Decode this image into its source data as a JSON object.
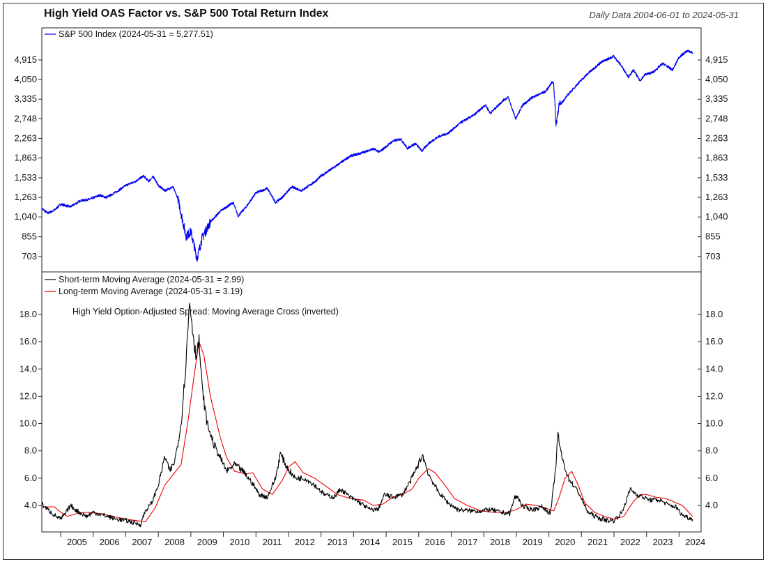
{
  "header": {
    "title": "High Yield OAS Factor vs. S&P 500 Total Return Index",
    "subtitle": "Daily Data 2004-06-01 to 2024-05-31"
  },
  "chart_data": [
    {
      "type": "line",
      "scale": "log",
      "ylim": [
        620,
        5700
      ],
      "xlim": [
        2004.42,
        2024.42
      ],
      "y_ticks": [
        703,
        855,
        1040,
        1263,
        1533,
        1863,
        2263,
        2748,
        3335,
        4050,
        4915
      ],
      "y_tick_labels": [
        "703",
        "855",
        "1,040",
        "1,263",
        "1,533",
        "1,863",
        "2,263",
        "2,748",
        "3,335",
        "4,050",
        "4,915"
      ],
      "legend_position": "top-left",
      "grid": false,
      "series": [
        {
          "name": "S&P 500 Index (2024-05-31 = 5,277.51)",
          "color": "#0000ee",
          "points": [
            [
              2004.42,
              1130
            ],
            [
              2004.6,
              1080
            ],
            [
              2004.8,
              1110
            ],
            [
              2005.0,
              1180
            ],
            [
              2005.3,
              1150
            ],
            [
              2005.6,
              1220
            ],
            [
              2005.9,
              1240
            ],
            [
              2006.2,
              1290
            ],
            [
              2006.4,
              1260
            ],
            [
              2006.7,
              1330
            ],
            [
              2007.0,
              1420
            ],
            [
              2007.3,
              1480
            ],
            [
              2007.55,
              1560
            ],
            [
              2007.7,
              1480
            ],
            [
              2007.85,
              1550
            ],
            [
              2008.0,
              1420
            ],
            [
              2008.2,
              1350
            ],
            [
              2008.45,
              1400
            ],
            [
              2008.6,
              1250
            ],
            [
              2008.75,
              1000
            ],
            [
              2008.85,
              860
            ],
            [
              2009.0,
              900
            ],
            [
              2009.1,
              780
            ],
            [
              2009.19,
              690
            ],
            [
              2009.35,
              850
            ],
            [
              2009.6,
              990
            ],
            [
              2009.9,
              1100
            ],
            [
              2010.3,
              1200
            ],
            [
              2010.45,
              1050
            ],
            [
              2010.7,
              1150
            ],
            [
              2011.0,
              1320
            ],
            [
              2011.35,
              1380
            ],
            [
              2011.6,
              1200
            ],
            [
              2011.8,
              1260
            ],
            [
              2012.1,
              1400
            ],
            [
              2012.4,
              1350
            ],
            [
              2012.8,
              1470
            ],
            [
              2013.0,
              1560
            ],
            [
              2013.4,
              1700
            ],
            [
              2013.9,
              1900
            ],
            [
              2014.2,
              1950
            ],
            [
              2014.6,
              2040
            ],
            [
              2014.8,
              1980
            ],
            [
              2015.2,
              2200
            ],
            [
              2015.45,
              2250
            ],
            [
              2015.65,
              2050
            ],
            [
              2015.9,
              2150
            ],
            [
              2016.1,
              2000
            ],
            [
              2016.3,
              2150
            ],
            [
              2016.6,
              2300
            ],
            [
              2016.9,
              2380
            ],
            [
              2017.3,
              2650
            ],
            [
              2017.7,
              2850
            ],
            [
              2018.05,
              3150
            ],
            [
              2018.2,
              2900
            ],
            [
              2018.6,
              3300
            ],
            [
              2018.75,
              3400
            ],
            [
              2018.98,
              2750
            ],
            [
              2019.2,
              3150
            ],
            [
              2019.5,
              3400
            ],
            [
              2019.9,
              3600
            ],
            [
              2020.1,
              3950
            ],
            [
              2020.15,
              3900
            ],
            [
              2020.22,
              2600
            ],
            [
              2020.3,
              3100
            ],
            [
              2020.6,
              3500
            ],
            [
              2020.9,
              3900
            ],
            [
              2021.2,
              4300
            ],
            [
              2021.6,
              4800
            ],
            [
              2021.99,
              5100
            ],
            [
              2022.2,
              4700
            ],
            [
              2022.45,
              4150
            ],
            [
              2022.6,
              4450
            ],
            [
              2022.8,
              4000
            ],
            [
              2022.95,
              4250
            ],
            [
              2023.2,
              4350
            ],
            [
              2023.5,
              4750
            ],
            [
              2023.8,
              4450
            ],
            [
              2024.0,
              5050
            ],
            [
              2024.25,
              5380
            ],
            [
              2024.42,
              5277.51
            ]
          ]
        }
      ]
    },
    {
      "type": "line",
      "title": "High Yield Option-Adjusted Spread: Moving Average Cross (inverted)",
      "ylim": [
        2.0,
        19.6
      ],
      "xlim": [
        2004.42,
        2024.42
      ],
      "y_ticks": [
        4.0,
        6.0,
        8.0,
        10.0,
        12.0,
        14.0,
        16.0,
        18.0
      ],
      "y_tick_labels": [
        "4.0",
        "6.0",
        "8.0",
        "10.0",
        "12.0",
        "14.0",
        "16.0",
        "18.0"
      ],
      "x_tick_labels": [
        "2005",
        "2006",
        "2007",
        "2008",
        "2009",
        "2010",
        "2011",
        "2012",
        "2013",
        "2014",
        "2015",
        "2016",
        "2017",
        "2018",
        "2019",
        "2020",
        "2021",
        "2022",
        "2023",
        "2024"
      ],
      "legend_position": "top-left",
      "grid": false,
      "series": [
        {
          "name": "Short-term Moving Average (2024-05-31 = 2.99)",
          "color": "#000000",
          "points": [
            [
              2004.42,
              4.1
            ],
            [
              2004.6,
              3.7
            ],
            [
              2004.8,
              3.3
            ],
            [
              2005.0,
              3.0
            ],
            [
              2005.15,
              3.4
            ],
            [
              2005.3,
              4.0
            ],
            [
              2005.5,
              3.6
            ],
            [
              2005.8,
              3.2
            ],
            [
              2006.0,
              3.5
            ],
            [
              2006.3,
              3.3
            ],
            [
              2006.7,
              3.0
            ],
            [
              2007.0,
              2.9
            ],
            [
              2007.3,
              2.7
            ],
            [
              2007.45,
              2.6
            ],
            [
              2007.6,
              3.6
            ],
            [
              2007.8,
              4.2
            ],
            [
              2008.0,
              5.5
            ],
            [
              2008.2,
              7.6
            ],
            [
              2008.35,
              6.5
            ],
            [
              2008.5,
              7.2
            ],
            [
              2008.7,
              10.0
            ],
            [
              2008.85,
              14.5
            ],
            [
              2008.96,
              19.0
            ],
            [
              2009.05,
              17.0
            ],
            [
              2009.15,
              15.0
            ],
            [
              2009.25,
              16.0
            ],
            [
              2009.35,
              12.5
            ],
            [
              2009.5,
              10.0
            ],
            [
              2009.7,
              8.5
            ],
            [
              2009.9,
              7.5
            ],
            [
              2010.1,
              6.5
            ],
            [
              2010.35,
              7.0
            ],
            [
              2010.6,
              6.5
            ],
            [
              2010.9,
              5.6
            ],
            [
              2011.1,
              4.8
            ],
            [
              2011.35,
              4.6
            ],
            [
              2011.6,
              6.0
            ],
            [
              2011.75,
              7.8
            ],
            [
              2011.95,
              6.8
            ],
            [
              2012.2,
              6.0
            ],
            [
              2012.5,
              6.0
            ],
            [
              2012.8,
              5.5
            ],
            [
              2013.1,
              4.8
            ],
            [
              2013.4,
              4.6
            ],
            [
              2013.6,
              5.2
            ],
            [
              2013.9,
              4.6
            ],
            [
              2014.2,
              4.2
            ],
            [
              2014.5,
              3.7
            ],
            [
              2014.75,
              3.7
            ],
            [
              2014.95,
              4.8
            ],
            [
              2015.2,
              4.6
            ],
            [
              2015.5,
              4.8
            ],
            [
              2015.75,
              5.8
            ],
            [
              2015.95,
              6.8
            ],
            [
              2016.12,
              7.7
            ],
            [
              2016.3,
              6.3
            ],
            [
              2016.6,
              5.0
            ],
            [
              2016.9,
              4.2
            ],
            [
              2017.2,
              3.7
            ],
            [
              2017.6,
              3.6
            ],
            [
              2017.9,
              3.6
            ],
            [
              2018.2,
              3.7
            ],
            [
              2018.5,
              3.5
            ],
            [
              2018.8,
              3.4
            ],
            [
              2018.95,
              4.6
            ],
            [
              2019.05,
              4.6
            ],
            [
              2019.2,
              3.9
            ],
            [
              2019.5,
              3.7
            ],
            [
              2019.8,
              3.9
            ],
            [
              2020.05,
              3.4
            ],
            [
              2020.2,
              6.5
            ],
            [
              2020.28,
              9.2
            ],
            [
              2020.4,
              7.5
            ],
            [
              2020.6,
              6.0
            ],
            [
              2020.9,
              5.0
            ],
            [
              2021.2,
              3.5
            ],
            [
              2021.5,
              3.1
            ],
            [
              2021.8,
              2.9
            ],
            [
              2022.0,
              2.9
            ],
            [
              2022.25,
              3.5
            ],
            [
              2022.5,
              5.2
            ],
            [
              2022.7,
              4.8
            ],
            [
              2022.9,
              4.6
            ],
            [
              2023.1,
              4.4
            ],
            [
              2023.4,
              4.4
            ],
            [
              2023.7,
              4.0
            ],
            [
              2023.9,
              3.9
            ],
            [
              2024.1,
              3.3
            ],
            [
              2024.3,
              3.1
            ],
            [
              2024.42,
              2.99
            ]
          ]
        },
        {
          "name": "Long-term Moving Average (2024-05-31 = 3.19)",
          "color": "#ee0000",
          "points": [
            [
              2004.42,
              3.9
            ],
            [
              2004.8,
              3.9
            ],
            [
              2005.0,
              3.5
            ],
            [
              2005.2,
              3.2
            ],
            [
              2005.5,
              3.4
            ],
            [
              2005.8,
              3.5
            ],
            [
              2006.2,
              3.4
            ],
            [
              2006.6,
              3.2
            ],
            [
              2007.0,
              3.0
            ],
            [
              2007.3,
              2.9
            ],
            [
              2007.6,
              2.8
            ],
            [
              2007.9,
              3.8
            ],
            [
              2008.2,
              5.5
            ],
            [
              2008.5,
              6.4
            ],
            [
              2008.7,
              7.0
            ],
            [
              2008.9,
              10.0
            ],
            [
              2009.1,
              13.5
            ],
            [
              2009.25,
              16.0
            ],
            [
              2009.4,
              15.0
            ],
            [
              2009.6,
              12.0
            ],
            [
              2009.9,
              9.0
            ],
            [
              2010.1,
              7.5
            ],
            [
              2010.35,
              6.5
            ],
            [
              2010.7,
              6.3
            ],
            [
              2010.9,
              6.4
            ],
            [
              2011.2,
              5.2
            ],
            [
              2011.5,
              4.8
            ],
            [
              2011.8,
              5.8
            ],
            [
              2012.0,
              6.8
            ],
            [
              2012.2,
              7.2
            ],
            [
              2012.45,
              6.4
            ],
            [
              2012.8,
              6.0
            ],
            [
              2013.1,
              5.5
            ],
            [
              2013.5,
              4.8
            ],
            [
              2013.9,
              4.5
            ],
            [
              2014.3,
              4.4
            ],
            [
              2014.6,
              4.0
            ],
            [
              2014.9,
              4.1
            ],
            [
              2015.2,
              4.6
            ],
            [
              2015.5,
              4.8
            ],
            [
              2015.8,
              5.2
            ],
            [
              2016.0,
              6.0
            ],
            [
              2016.3,
              6.7
            ],
            [
              2016.5,
              6.4
            ],
            [
              2016.8,
              5.5
            ],
            [
              2017.1,
              4.5
            ],
            [
              2017.5,
              4.0
            ],
            [
              2017.9,
              3.6
            ],
            [
              2018.3,
              3.5
            ],
            [
              2018.7,
              3.5
            ],
            [
              2019.0,
              3.7
            ],
            [
              2019.3,
              4.1
            ],
            [
              2019.6,
              4.0
            ],
            [
              2019.9,
              3.8
            ],
            [
              2020.15,
              3.6
            ],
            [
              2020.3,
              4.5
            ],
            [
              2020.5,
              6.0
            ],
            [
              2020.7,
              6.5
            ],
            [
              2020.9,
              5.5
            ],
            [
              2021.1,
              4.2
            ],
            [
              2021.4,
              3.5
            ],
            [
              2021.7,
              3.2
            ],
            [
              2022.0,
              3.0
            ],
            [
              2022.3,
              3.2
            ],
            [
              2022.6,
              4.3
            ],
            [
              2022.8,
              4.8
            ],
            [
              2023.0,
              4.8
            ],
            [
              2023.3,
              4.6
            ],
            [
              2023.6,
              4.5
            ],
            [
              2023.9,
              4.2
            ],
            [
              2024.1,
              4.0
            ],
            [
              2024.3,
              3.5
            ],
            [
              2024.42,
              3.19
            ]
          ]
        }
      ]
    }
  ]
}
